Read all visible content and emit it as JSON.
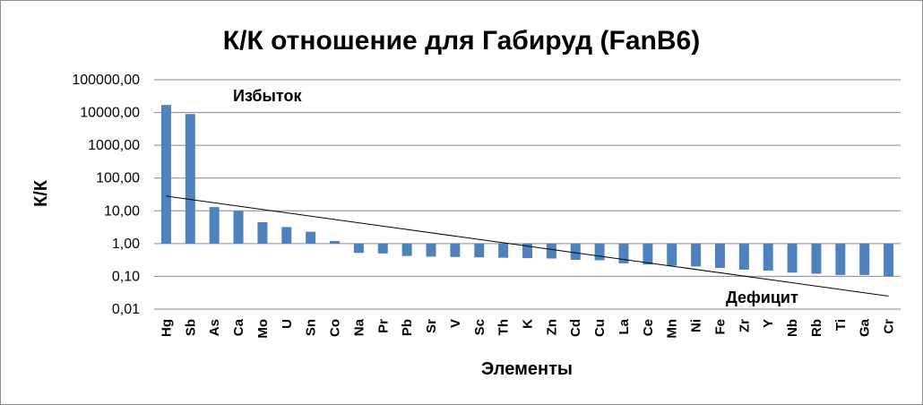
{
  "chart_data": {
    "type": "bar",
    "title": "К/К отношение для Габируд (FanB6)",
    "xlabel": "Элементы",
    "ylabel": "К/К",
    "yscale": "log",
    "ylim": [
      0.01,
      100000
    ],
    "baseline": 1,
    "yticks": [
      "0,01",
      "0,10",
      "1,00",
      "10,00",
      "100,00",
      "1000,00",
      "10000,00",
      "100000,00"
    ],
    "grid": true,
    "bar_color": "#4F81BD",
    "trendline": {
      "type": "exponential",
      "color": "#000000",
      "start": 28,
      "end": 0.025
    },
    "annotations": [
      {
        "text": "Избыток",
        "near": "Hg"
      },
      {
        "text": "Дефицит",
        "near": "Ni"
      }
    ],
    "categories": [
      "Hg",
      "Sb",
      "As",
      "Ca",
      "Mo",
      "U",
      "Sn",
      "Co",
      "Na",
      "Pr",
      "Pb",
      "Sr",
      "V",
      "Sc",
      "Th",
      "K",
      "Zn",
      "Cd",
      "Cu",
      "La",
      "Ce",
      "Mn",
      "Ni",
      "Fe",
      "Zr",
      "Y",
      "Nb",
      "Rb",
      "Ti",
      "Ga",
      "Cr"
    ],
    "values": [
      17000,
      9000,
      13,
      10,
      4.5,
      3.2,
      2.3,
      1.2,
      0.52,
      0.5,
      0.42,
      0.4,
      0.39,
      0.38,
      0.37,
      0.36,
      0.35,
      0.32,
      0.31,
      0.25,
      0.23,
      0.21,
      0.2,
      0.18,
      0.16,
      0.15,
      0.13,
      0.12,
      0.11,
      0.11,
      0.1
    ]
  }
}
